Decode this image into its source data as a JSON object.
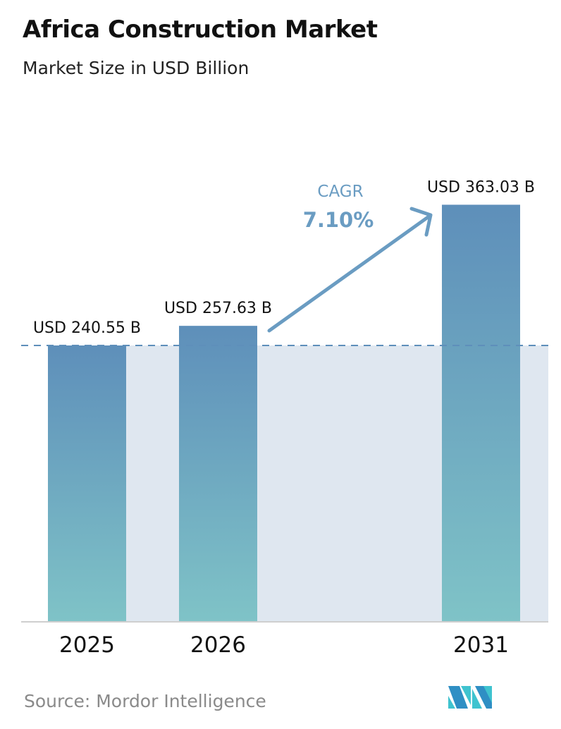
{
  "title": "Africa Construction Market",
  "subtitle": "Market Size in USD Billion",
  "source": "Source:  Mordor Intelligence",
  "chart_data": {
    "type": "bar",
    "categories": [
      "2025",
      "2026",
      "2031"
    ],
    "values": [
      240.55,
      257.63,
      363.03
    ],
    "data_labels": [
      "USD 240.55 B",
      "USD 257.63 B",
      "USD 363.03 B"
    ],
    "ylim": [
      0,
      400
    ],
    "grid": false,
    "annotation": {
      "label": "CAGR",
      "value": "7.10%"
    },
    "colors": {
      "bar_top": "#5e8fba",
      "bar_bottom": "#7fc3c7",
      "band": "#dfe7f0",
      "accent": "#6a9cc2"
    }
  }
}
